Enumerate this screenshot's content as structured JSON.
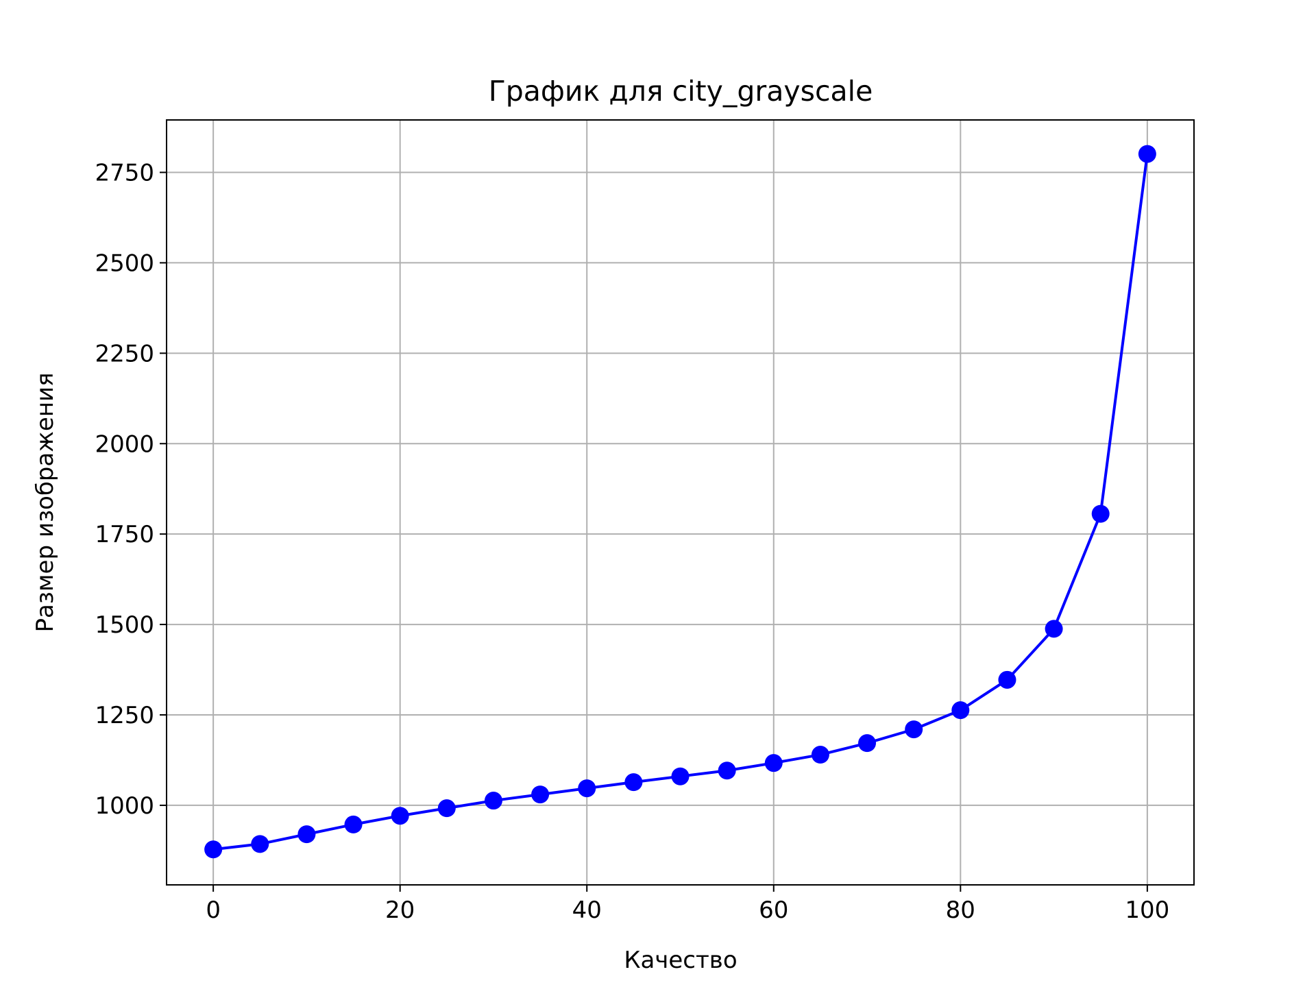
{
  "chart_data": {
    "type": "line",
    "title": "График для city_grayscale",
    "xlabel": "Качество",
    "ylabel": "Размер изображения",
    "xlim": [
      -5,
      105
    ],
    "ylim": [
      780,
      2895
    ],
    "xticks": [
      0,
      20,
      40,
      60,
      80,
      100
    ],
    "yticks": [
      1000,
      1250,
      1500,
      1750,
      2000,
      2250,
      2500,
      2750
    ],
    "grid": true,
    "series": [
      {
        "color": "#0000ff",
        "marker": "circle",
        "x": [
          0,
          5,
          10,
          15,
          20,
          25,
          30,
          35,
          40,
          45,
          50,
          55,
          60,
          65,
          70,
          75,
          80,
          85,
          90,
          95,
          100
        ],
        "y": [
          878,
          893,
          920,
          947,
          971,
          992,
          1013,
          1030,
          1047,
          1064,
          1080,
          1096,
          1117,
          1140,
          1172,
          1210,
          1263,
          1347,
          1488,
          1806,
          2801
        ]
      }
    ]
  }
}
